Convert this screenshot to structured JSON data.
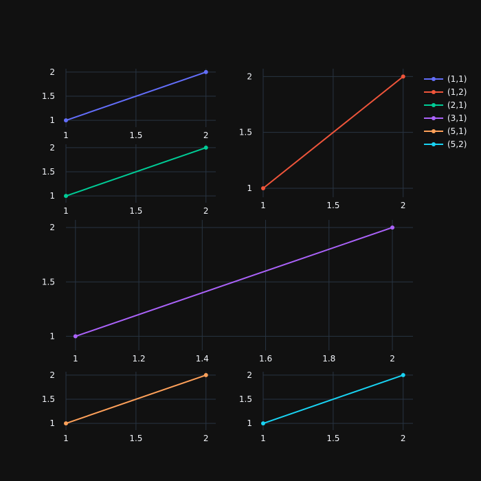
{
  "chart_data": {
    "type": "line",
    "background": "#111111",
    "grid": true,
    "legend_placement": "top-right",
    "legend": [
      {
        "name": "(1,1)",
        "color": "#636efa"
      },
      {
        "name": "(1,2)",
        "color": "#EF553B"
      },
      {
        "name": "(2,1)",
        "color": "#00cc96"
      },
      {
        "name": "(3,1)",
        "color": "#ab63fa"
      },
      {
        "name": "(5,1)",
        "color": "#FFA15A"
      },
      {
        "name": "(5,2)",
        "color": "#19d3f3"
      }
    ],
    "subplots": [
      {
        "id": "1-1",
        "series": {
          "name": "(1,1)",
          "color": "#636efa",
          "x": [
            1,
            2
          ],
          "y": [
            1,
            2
          ]
        },
        "xlim": [
          1,
          2.07
        ],
        "ylim": [
          0.86,
          2.07
        ],
        "xticks": [
          1,
          1.5,
          2
        ],
        "xtick_labels": [
          "1",
          "1.5",
          "2"
        ],
        "yticks": [
          1,
          1.5,
          2
        ],
        "ytick_labels": [
          "1",
          "1.5",
          "2"
        ]
      },
      {
        "id": "1-2",
        "series": {
          "name": "(1,2)",
          "color": "#EF553B",
          "x": [
            1,
            2
          ],
          "y": [
            1,
            2
          ]
        },
        "xlim": [
          1,
          2.07
        ],
        "ylim": [
          0.92,
          2.07
        ],
        "xticks": [
          1,
          1.5,
          2
        ],
        "xtick_labels": [
          "1",
          "1.5",
          "2"
        ],
        "yticks": [
          1,
          1.5,
          2
        ],
        "ytick_labels": [
          "1",
          "1.5",
          "2"
        ]
      },
      {
        "id": "2-1",
        "series": {
          "name": "(2,1)",
          "color": "#00cc96",
          "x": [
            1,
            2
          ],
          "y": [
            1,
            2
          ]
        },
        "xlim": [
          1,
          2.07
        ],
        "ylim": [
          0.86,
          2.07
        ],
        "xticks": [
          1,
          1.5,
          2
        ],
        "xtick_labels": [
          "1",
          "1.5",
          "2"
        ],
        "yticks": [
          1,
          1.5,
          2
        ],
        "ytick_labels": [
          "1",
          "1.5",
          "2"
        ]
      },
      {
        "id": "3-1",
        "series": {
          "name": "(3,1)",
          "color": "#ab63fa",
          "x": [
            1,
            2
          ],
          "y": [
            1,
            2
          ]
        },
        "xlim": [
          0.97,
          2.065
        ],
        "ylim": [
          0.87,
          2.07
        ],
        "xticks": [
          1,
          1.2,
          1.4,
          1.6,
          1.8,
          2
        ],
        "xtick_labels": [
          "1",
          "1.2",
          "1.4",
          "1.6",
          "1.8",
          "2"
        ],
        "yticks": [
          1,
          1.5,
          2
        ],
        "ytick_labels": [
          "1",
          "1.5",
          "2"
        ]
      },
      {
        "id": "5-1",
        "series": {
          "name": "(5,1)",
          "color": "#FFA15A",
          "x": [
            1,
            2
          ],
          "y": [
            1,
            2
          ]
        },
        "xlim": [
          1,
          2.07
        ],
        "ylim": [
          0.86,
          2.07
        ],
        "xticks": [
          1,
          1.5,
          2
        ],
        "xtick_labels": [
          "1",
          "1.5",
          "2"
        ],
        "yticks": [
          1,
          1.5,
          2
        ],
        "ytick_labels": [
          "1",
          "1.5",
          "2"
        ]
      },
      {
        "id": "5-2",
        "series": {
          "name": "(5,2)",
          "color": "#19d3f3",
          "x": [
            1,
            2
          ],
          "y": [
            1,
            2
          ]
        },
        "xlim": [
          1,
          2.07
        ],
        "ylim": [
          0.86,
          2.07
        ],
        "xticks": [
          1,
          1.5,
          2
        ],
        "xtick_labels": [
          "1",
          "1.5",
          "2"
        ],
        "yticks": [
          1,
          1.5,
          2
        ],
        "ytick_labels": [
          "1",
          "1.5",
          "2"
        ]
      }
    ]
  }
}
